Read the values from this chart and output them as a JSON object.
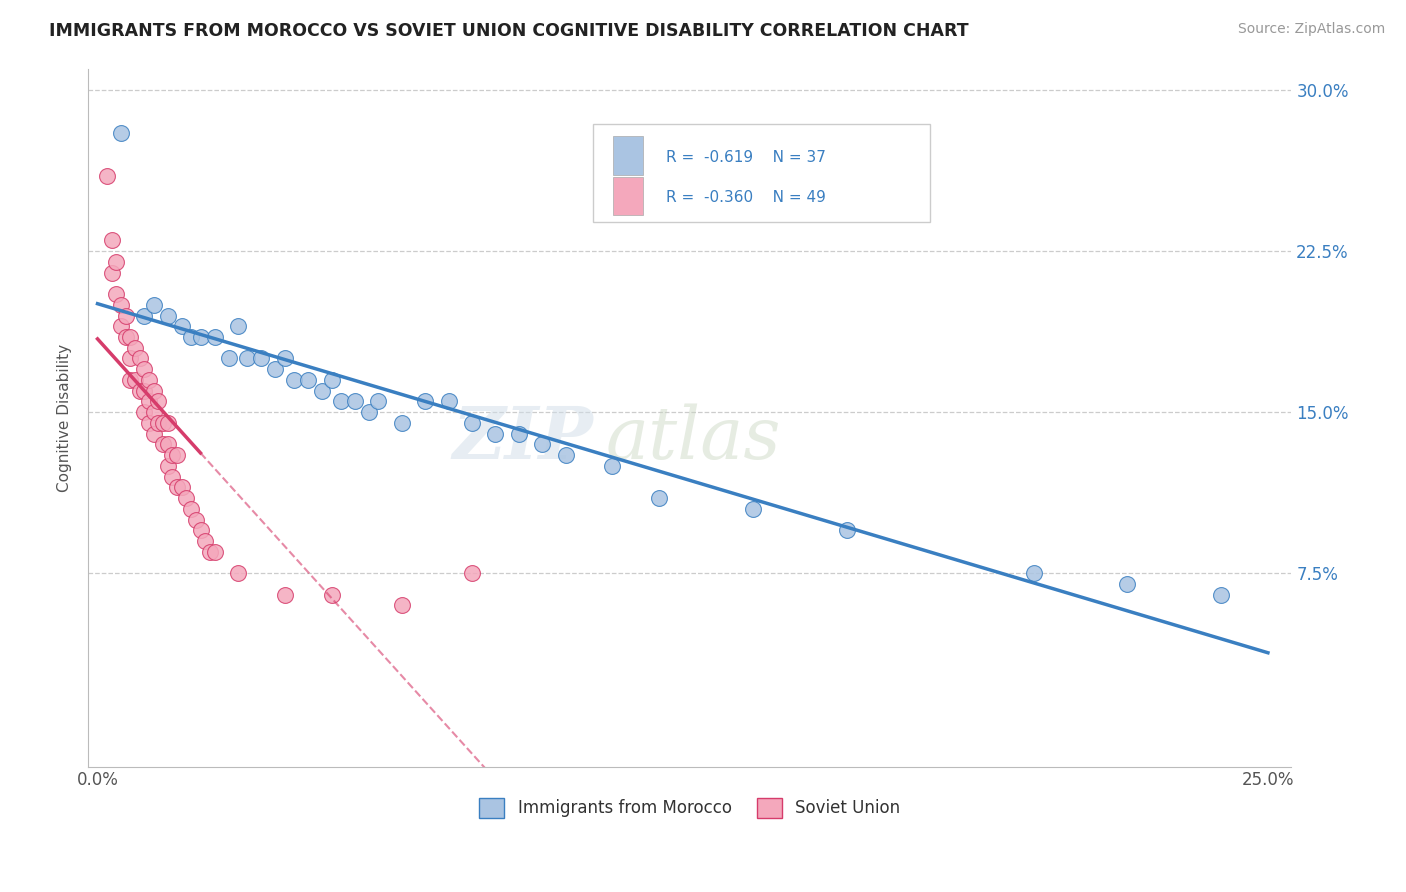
{
  "title": "IMMIGRANTS FROM MOROCCO VS SOVIET UNION COGNITIVE DISABILITY CORRELATION CHART",
  "source": "Source: ZipAtlas.com",
  "ylabel": "Cognitive Disability",
  "legend_labels": [
    "Immigrants from Morocco",
    "Soviet Union"
  ],
  "xmin": 0.0,
  "xmax": 0.25,
  "ymin": 0.0,
  "ymax": 0.3,
  "color_morocco": "#aac4e2",
  "color_soviet": "#f4a8bc",
  "color_line_morocco": "#3a7fc1",
  "color_line_soviet": "#d63c6b",
  "morocco_x": [
    0.005,
    0.01,
    0.012,
    0.015,
    0.018,
    0.02,
    0.022,
    0.025,
    0.028,
    0.03,
    0.032,
    0.035,
    0.038,
    0.04,
    0.042,
    0.045,
    0.048,
    0.05,
    0.052,
    0.055,
    0.058,
    0.06,
    0.065,
    0.07,
    0.075,
    0.08,
    0.085,
    0.09,
    0.095,
    0.1,
    0.11,
    0.12,
    0.14,
    0.16,
    0.2,
    0.22,
    0.24
  ],
  "morocco_y": [
    0.28,
    0.195,
    0.2,
    0.195,
    0.19,
    0.185,
    0.185,
    0.185,
    0.175,
    0.19,
    0.175,
    0.175,
    0.17,
    0.175,
    0.165,
    0.165,
    0.16,
    0.165,
    0.155,
    0.155,
    0.15,
    0.155,
    0.145,
    0.155,
    0.155,
    0.145,
    0.14,
    0.14,
    0.135,
    0.13,
    0.125,
    0.11,
    0.105,
    0.095,
    0.075,
    0.07,
    0.065
  ],
  "soviet_x": [
    0.002,
    0.003,
    0.003,
    0.004,
    0.004,
    0.005,
    0.005,
    0.006,
    0.006,
    0.007,
    0.007,
    0.007,
    0.008,
    0.008,
    0.009,
    0.009,
    0.01,
    0.01,
    0.01,
    0.011,
    0.011,
    0.011,
    0.012,
    0.012,
    0.012,
    0.013,
    0.013,
    0.014,
    0.014,
    0.015,
    0.015,
    0.015,
    0.016,
    0.016,
    0.017,
    0.017,
    0.018,
    0.019,
    0.02,
    0.021,
    0.022,
    0.023,
    0.024,
    0.025,
    0.03,
    0.04,
    0.05,
    0.065,
    0.08
  ],
  "soviet_y": [
    0.26,
    0.23,
    0.215,
    0.22,
    0.205,
    0.2,
    0.19,
    0.195,
    0.185,
    0.185,
    0.175,
    0.165,
    0.18,
    0.165,
    0.175,
    0.16,
    0.17,
    0.16,
    0.15,
    0.165,
    0.155,
    0.145,
    0.16,
    0.15,
    0.14,
    0.155,
    0.145,
    0.145,
    0.135,
    0.145,
    0.135,
    0.125,
    0.13,
    0.12,
    0.13,
    0.115,
    0.115,
    0.11,
    0.105,
    0.1,
    0.095,
    0.09,
    0.085,
    0.085,
    0.075,
    0.065,
    0.065,
    0.06,
    0.075
  ]
}
